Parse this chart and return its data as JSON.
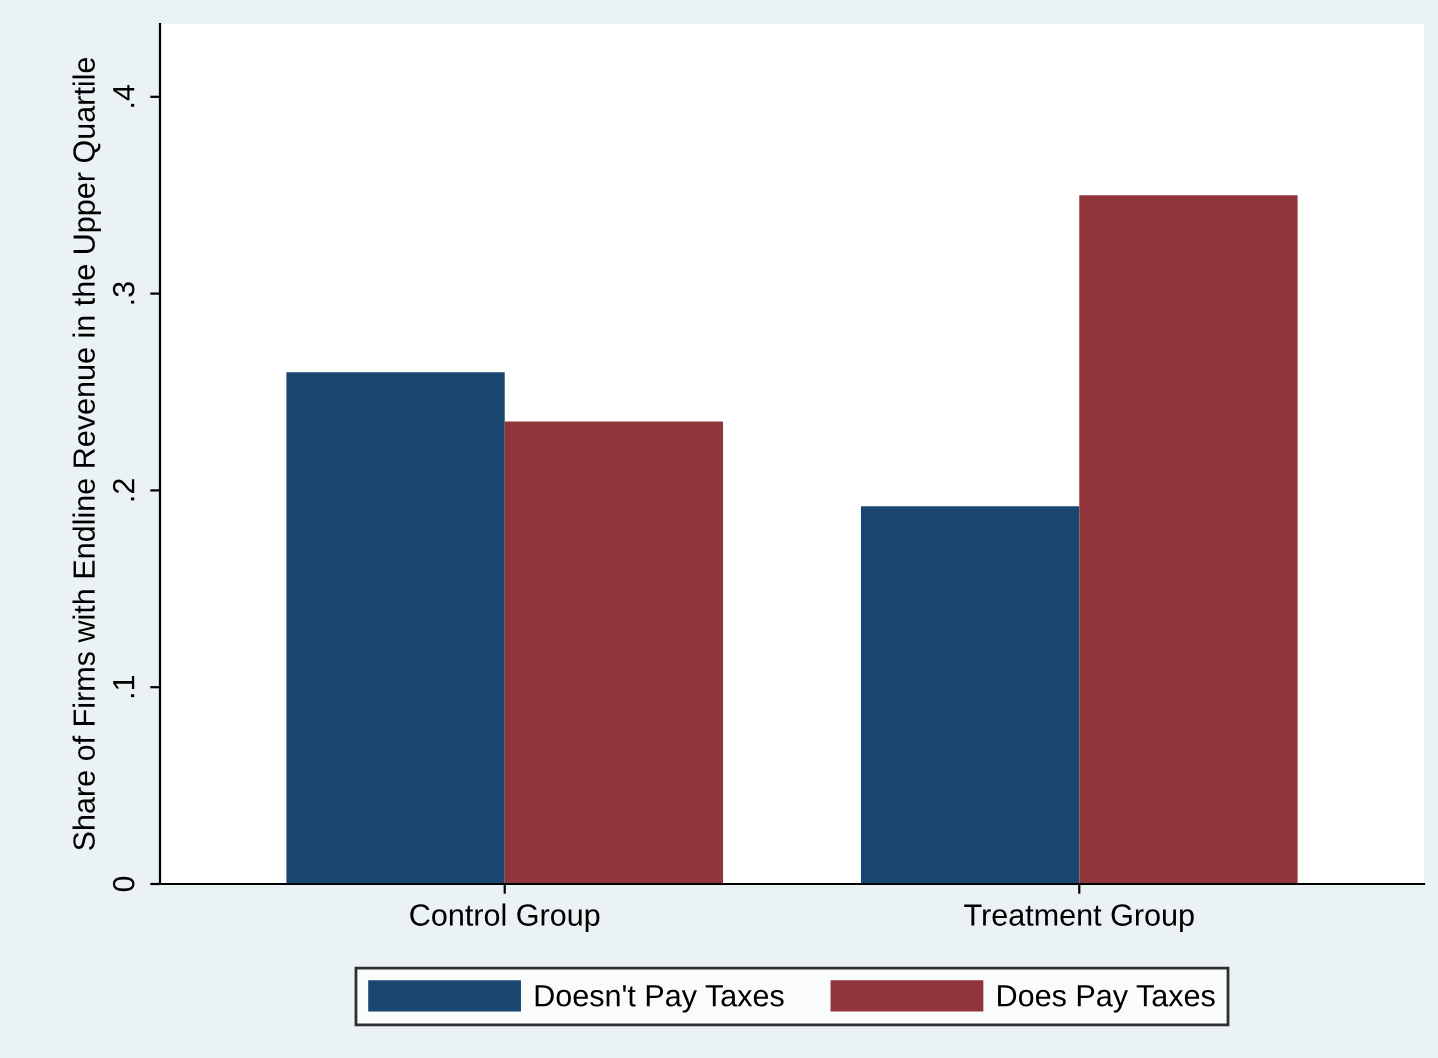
{
  "chart_data": {
    "type": "bar",
    "ylabel": "Share of Firms with Endline Revenue in the Upper Quartile",
    "categories": [
      "Control Group",
      "Treatment Group"
    ],
    "series": [
      {
        "name": "Doesn't Pay Taxes",
        "color": "#1a476f",
        "values": [
          0.26,
          0.192
        ]
      },
      {
        "name": "Does Pay Taxes",
        "color": "#90353b",
        "values": [
          0.235,
          0.35
        ]
      }
    ],
    "ylim": [
      0,
      0.437
    ],
    "yticks": [
      0,
      {
        "value": 0.1,
        "label": ".1"
      },
      {
        "value": 0.2,
        "label": ".2"
      },
      {
        "value": 0.3,
        "label": ".3"
      },
      {
        "value": 0.4,
        "label": ".4"
      }
    ],
    "grid": false,
    "legend": "bottom"
  }
}
